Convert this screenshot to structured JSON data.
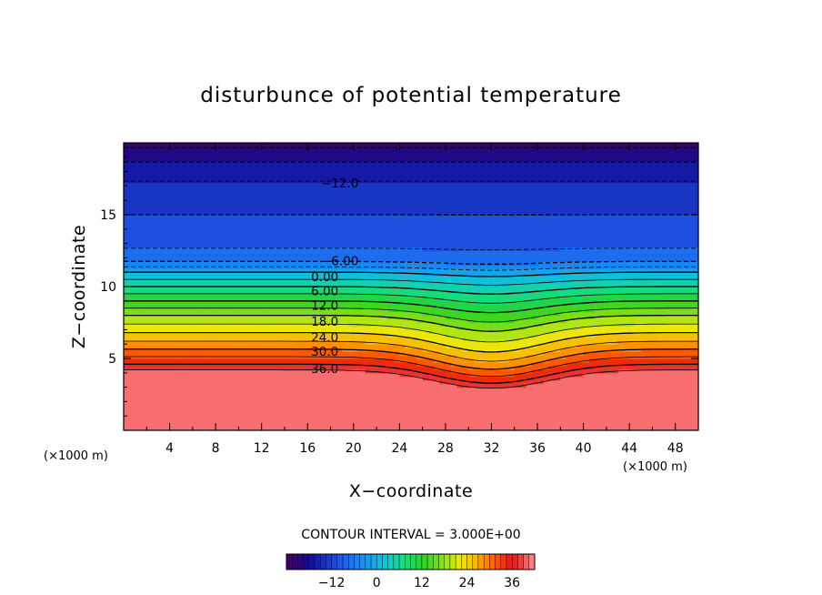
{
  "chart_data": {
    "type": "contour",
    "title": "disturbunce of potential temperature",
    "xlabel": "X−coordinate",
    "ylabel": "Z−coordinate",
    "x_unit_label": "(×1000 m)",
    "z_unit_label": "(×1000 m)",
    "xlim": [
      0,
      50
    ],
    "ylim": [
      0,
      20
    ],
    "x_ticks": [
      4,
      8,
      12,
      16,
      20,
      24,
      28,
      32,
      36,
      40,
      44,
      48
    ],
    "y_ticks": [
      5,
      10,
      15
    ],
    "contour_interval_text": "CONTOUR INTERVAL = 3.000E+00",
    "contour_labels": [
      {
        "text": "−12.0",
        "x": 18.8,
        "z": 17.2
      },
      {
        "text": "−6.00",
        "x": 18.8,
        "z": 11.8
      },
      {
        "text": "0.00",
        "x": 17.5,
        "z": 10.7
      },
      {
        "text": "6.00",
        "x": 17.5,
        "z": 9.7
      },
      {
        "text": "12.0",
        "x": 17.5,
        "z": 8.7
      },
      {
        "text": "18.0",
        "x": 17.5,
        "z": 7.6
      },
      {
        "text": "24.0",
        "x": 17.5,
        "z": 6.5
      },
      {
        "text": "30.0",
        "x": 17.5,
        "z": 5.5
      },
      {
        "text": "36.0",
        "x": 17.5,
        "z": 4.3
      }
    ],
    "colorbar": {
      "min": -24,
      "max": 42,
      "tick_values": [
        -12,
        0,
        12,
        24,
        36
      ],
      "tick_labels": [
        "−12",
        "0",
        "12",
        "24",
        "36"
      ]
    },
    "field_profile_z": [
      0,
      3,
      4.2,
      4.6,
      6,
      8,
      10,
      11,
      12,
      14,
      16,
      18,
      19,
      20
    ],
    "field_profile_value": [
      42,
      41,
      39,
      36,
      28,
      18,
      6,
      0,
      -8,
      -11,
      -13,
      -16,
      -19,
      -22
    ]
  }
}
